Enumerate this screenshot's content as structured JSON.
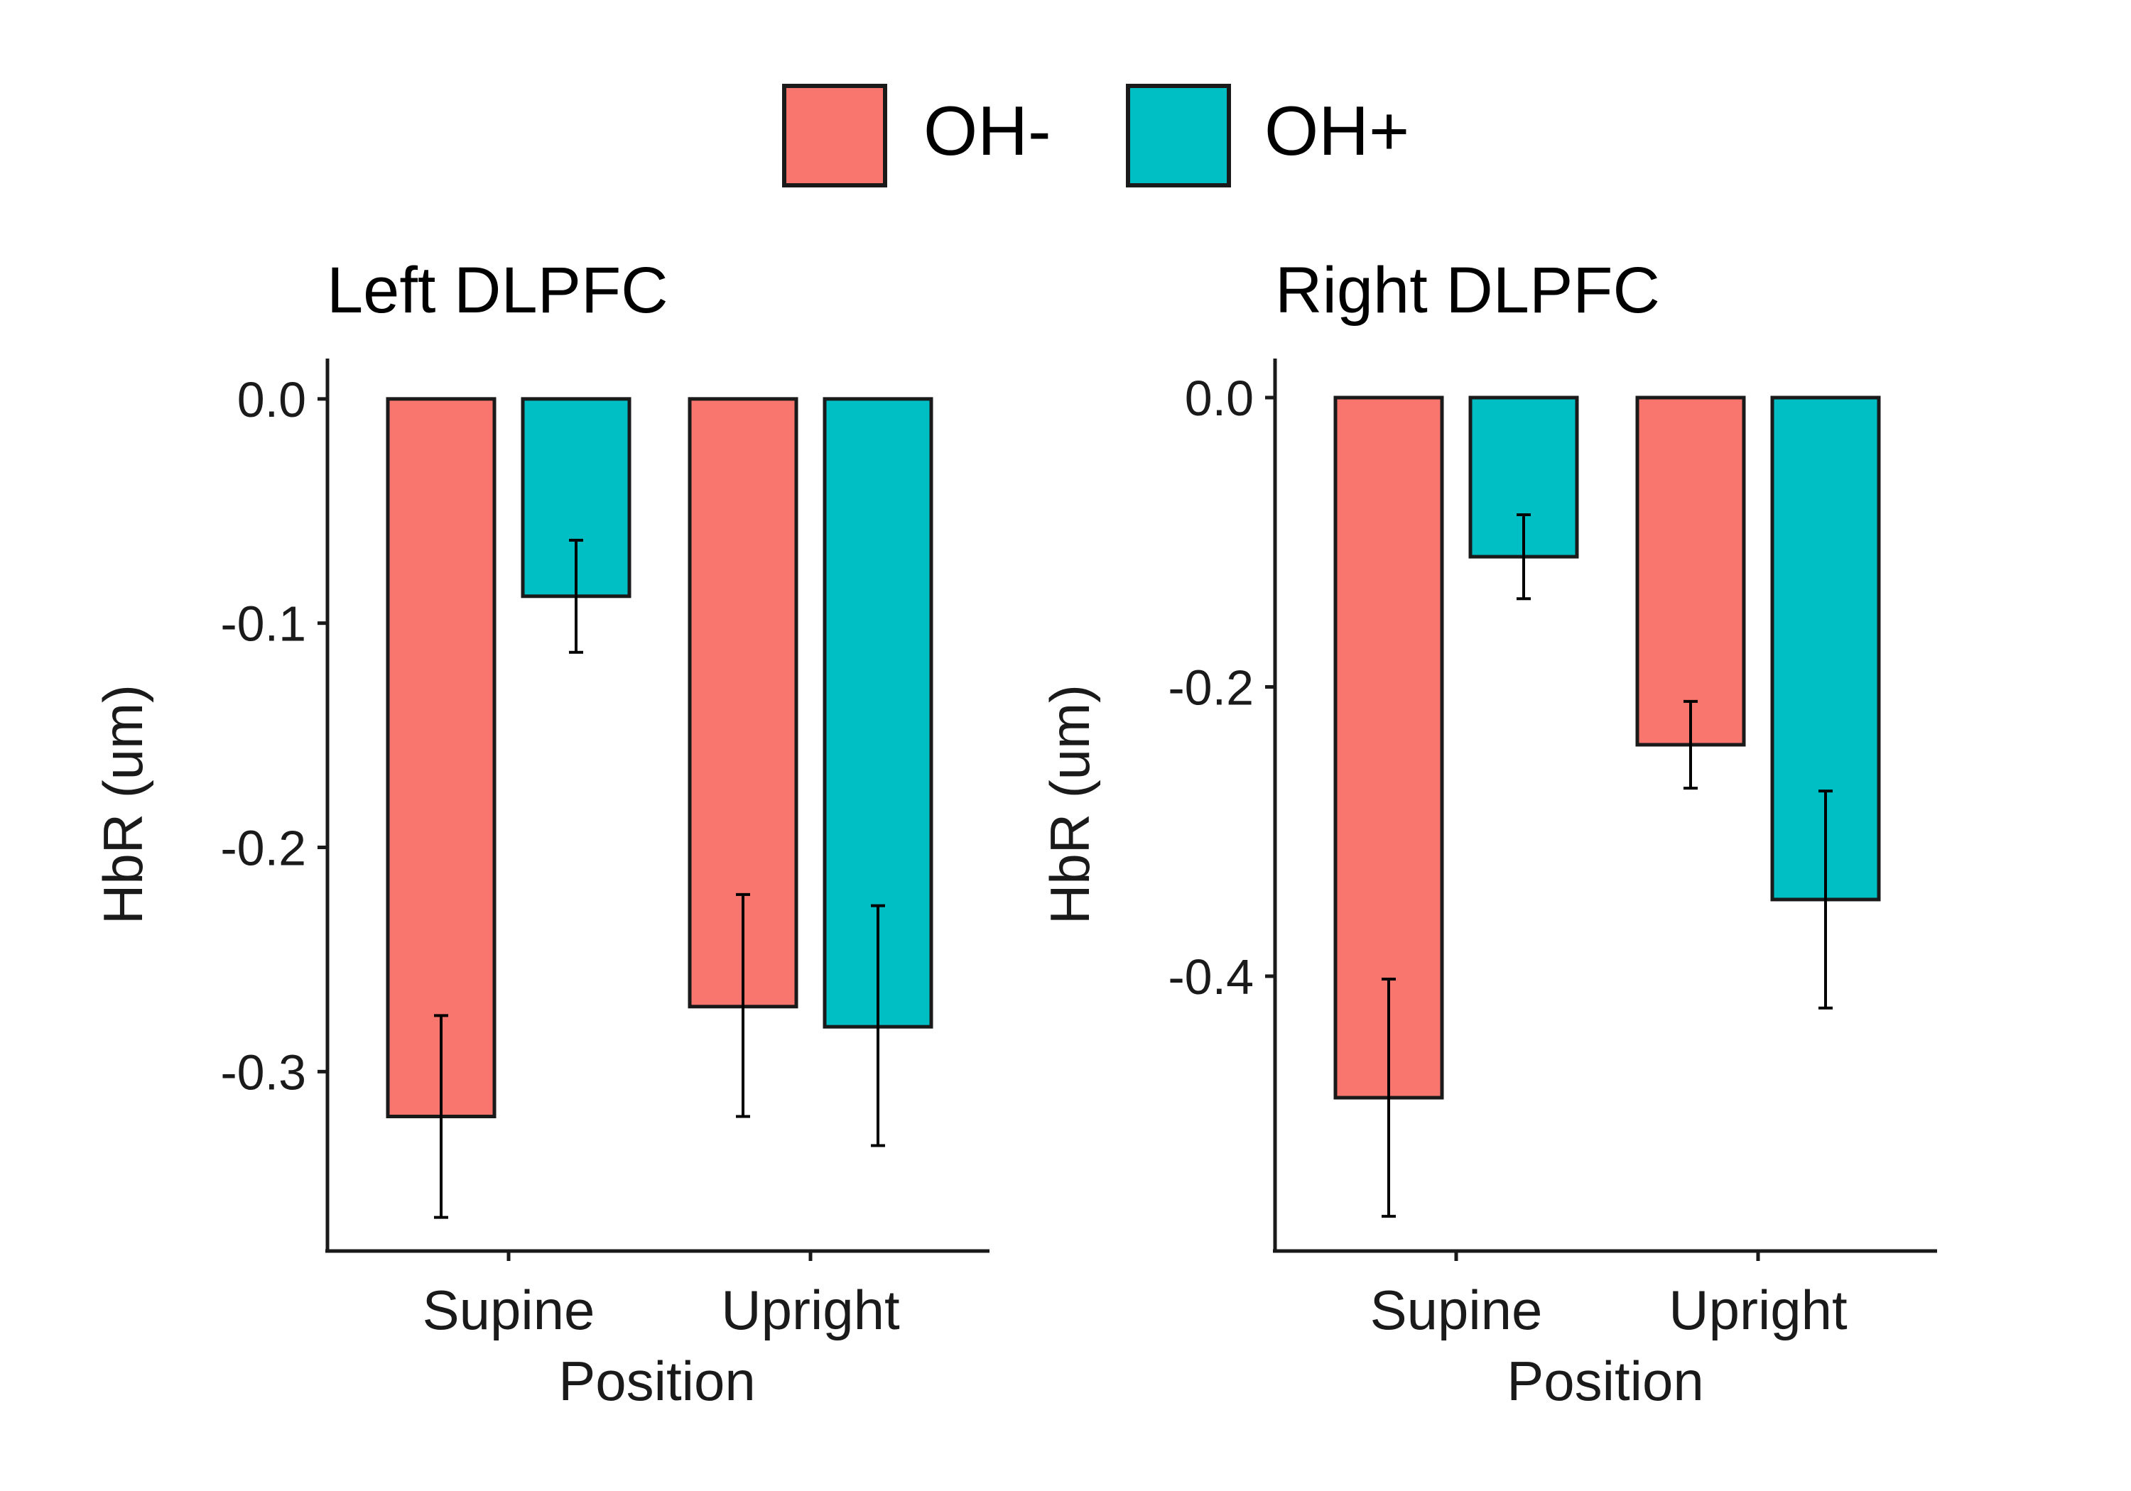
{
  "legend": {
    "items": [
      {
        "label": "OH-",
        "color": "#F8766D"
      },
      {
        "label": "OH+",
        "color": "#00BFC4"
      }
    ]
  },
  "chart_data": [
    {
      "type": "bar",
      "title": "Left DLPFC",
      "xlabel": "Position",
      "ylabel": "HbR (um)",
      "categories": [
        "Supine",
        "Upright"
      ],
      "ylim": [
        -0.38,
        0.018
      ],
      "yticks": [
        0.0,
        -0.1,
        -0.2,
        -0.3
      ],
      "ytick_labels": [
        "0.0",
        "-0.1",
        "-0.2",
        "-0.3"
      ],
      "series": [
        {
          "name": "OH-",
          "color": "#F8766D",
          "values": [
            -0.32,
            -0.271
          ],
          "error_low": [
            -0.365,
            -0.32
          ],
          "error_high": [
            -0.275,
            -0.221
          ]
        },
        {
          "name": "OH+",
          "color": "#00BFC4",
          "values": [
            -0.088,
            -0.28
          ],
          "error_low": [
            -0.113,
            -0.333
          ],
          "error_high": [
            -0.063,
            -0.226
          ]
        }
      ]
    },
    {
      "type": "bar",
      "title": "Right DLPFC",
      "xlabel": "Position",
      "ylabel": "HbR (um)",
      "categories": [
        "Supine",
        "Upright"
      ],
      "ylim": [
        -0.59,
        0.027
      ],
      "yticks": [
        0.0,
        -0.2,
        -0.4
      ],
      "ytick_labels": [
        "0.0",
        "-0.2",
        "-0.4"
      ],
      "series": [
        {
          "name": "OH-",
          "color": "#F8766D",
          "values": [
            -0.484,
            -0.24
          ],
          "error_low": [
            -0.566,
            -0.27
          ],
          "error_high": [
            -0.402,
            -0.21
          ]
        },
        {
          "name": "OH+",
          "color": "#00BFC4",
          "values": [
            -0.11,
            -0.347
          ],
          "error_low": [
            -0.139,
            -0.422
          ],
          "error_high": [
            -0.081,
            -0.272
          ]
        }
      ]
    }
  ]
}
